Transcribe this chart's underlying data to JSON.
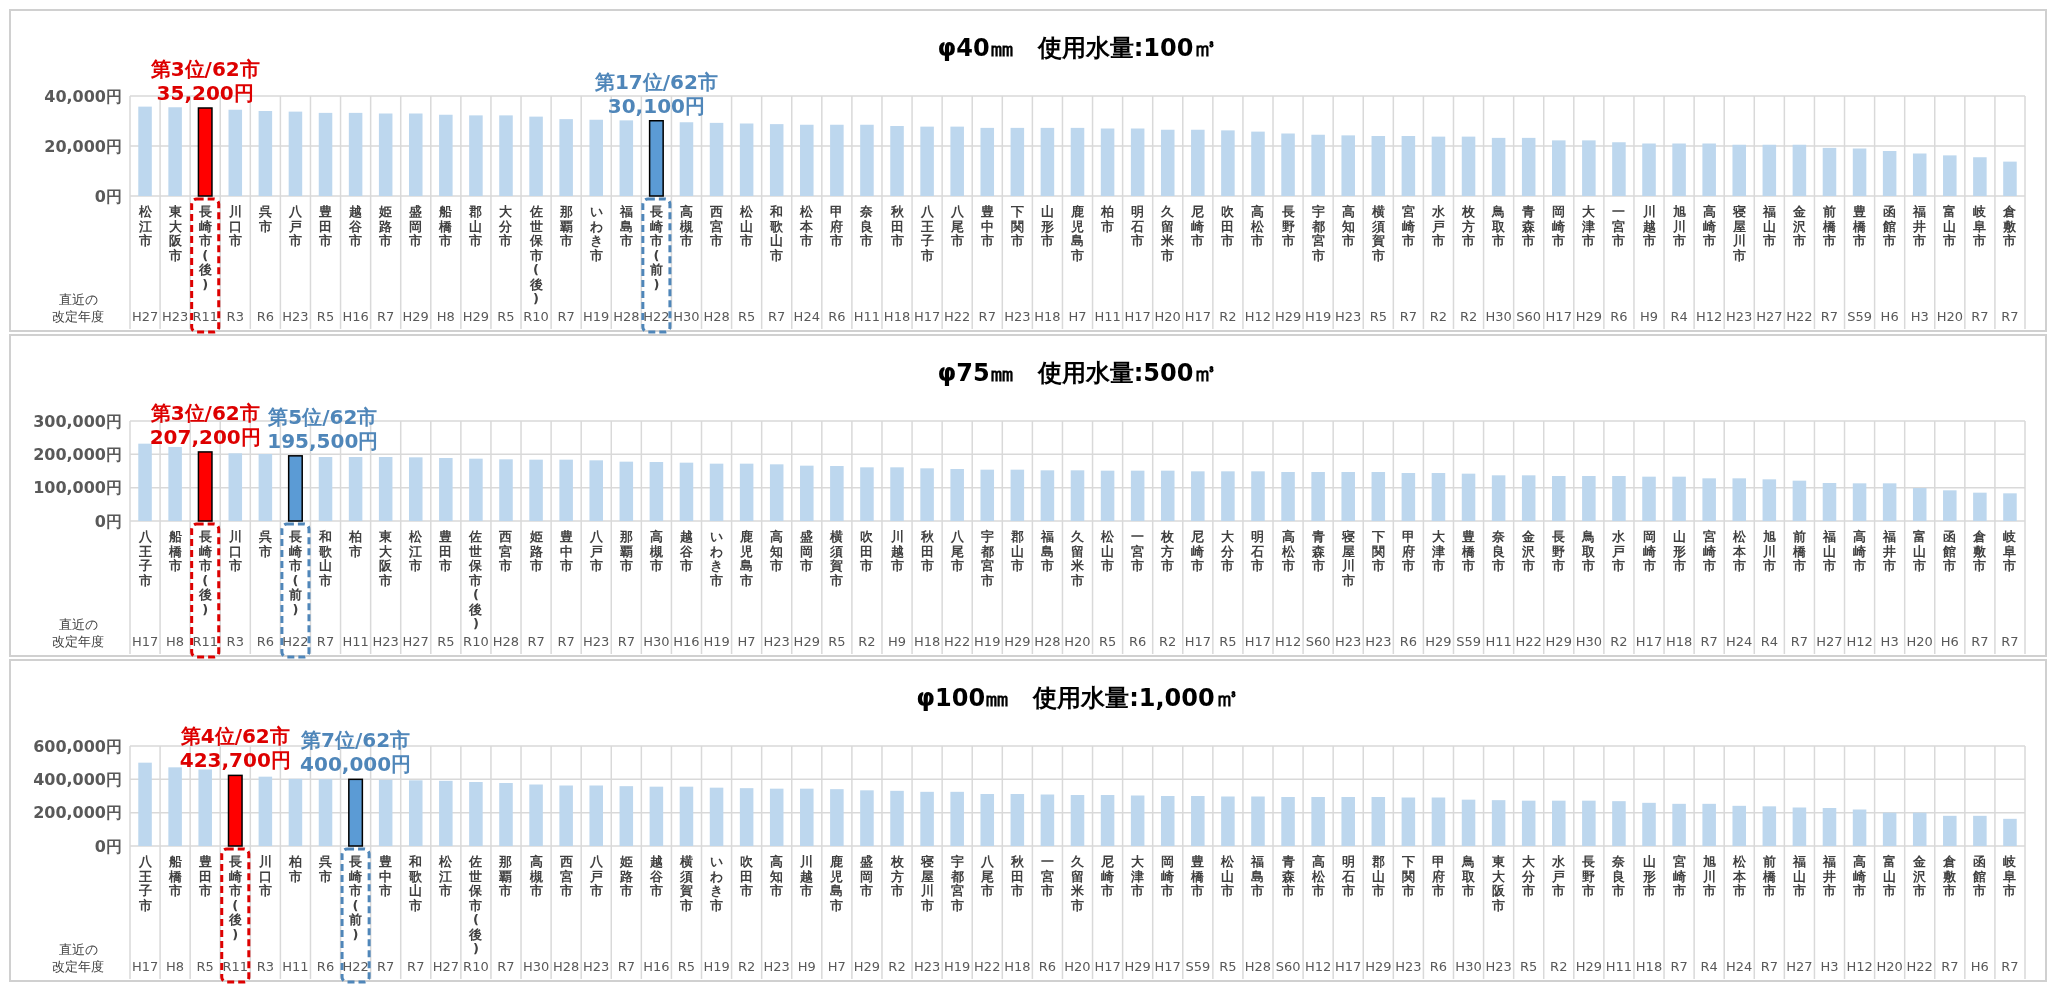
{
  "chart_data": [
    {
      "type": "bar",
      "title": "φ40㎜　使用水量:100㎥",
      "grid": true,
      "categories": [
        "松江市",
        "東大阪市",
        "長崎市(後)",
        "川口市",
        "呉市",
        "八戸市",
        "豊田市",
        "越谷市",
        "姫路市",
        "盛岡市",
        "船橋市",
        "郡山市",
        "大分市",
        "佐世保市(後)",
        "那覇市",
        "いわき市",
        "福島市",
        "長崎市(前)",
        "高槻市",
        "西宮市",
        "松山市",
        "和歌山市",
        "松本市",
        "甲府市",
        "奈良市",
        "秋田市",
        "八王子市",
        "八尾市",
        "豊中市",
        "下関市",
        "山形市",
        "鹿児島市",
        "柏市",
        "明石市",
        "久留米市",
        "尼崎市",
        "吹田市",
        "高松市",
        "長野市",
        "宇都宮市",
        "高知市",
        "横須賀市",
        "宮崎市",
        "水戸市",
        "枚方市",
        "鳥取市",
        "青森市",
        "岡崎市",
        "大津市",
        "一宮市",
        "川越市",
        "旭川市",
        "高崎市",
        "寝屋川市",
        "福山市",
        "金沢市",
        "前橋市",
        "豊橋市",
        "函館市",
        "福井市",
        "富山市",
        "岐阜市",
        "倉敷市"
      ],
      "values": [
        35750,
        35500,
        35200,
        34500,
        34000,
        33750,
        33250,
        33250,
        33000,
        33000,
        32500,
        32250,
        32250,
        31750,
        30750,
        30500,
        30250,
        30100,
        29500,
        29250,
        29000,
        28750,
        28500,
        28500,
        28500,
        28000,
        27750,
        27750,
        27250,
        27250,
        27250,
        27250,
        27000,
        27000,
        26500,
        26500,
        26250,
        25750,
        25000,
        24500,
        24250,
        24000,
        24000,
        23750,
        23750,
        23250,
        23250,
        22250,
        22250,
        21500,
        21000,
        21000,
        21000,
        20500,
        20500,
        20500,
        19250,
        19000,
        18000,
        17000,
        16250,
        15500,
        13750
      ],
      "colors": [
        "#bdd7ee",
        "#bdd7ee",
        "#ff0000",
        "#bdd7ee",
        "#bdd7ee",
        "#bdd7ee",
        "#bdd7ee",
        "#bdd7ee",
        "#bdd7ee",
        "#bdd7ee",
        "#bdd7ee",
        "#bdd7ee",
        "#bdd7ee",
        "#bdd7ee",
        "#bdd7ee",
        "#bdd7ee",
        "#bdd7ee",
        "#5b9bd5",
        "#bdd7ee",
        "#bdd7ee",
        "#bdd7ee",
        "#bdd7ee",
        "#bdd7ee",
        "#bdd7ee",
        "#bdd7ee",
        "#bdd7ee",
        "#bdd7ee",
        "#bdd7ee",
        "#bdd7ee",
        "#bdd7ee",
        "#bdd7ee",
        "#bdd7ee",
        "#bdd7ee",
        "#bdd7ee",
        "#bdd7ee",
        "#bdd7ee",
        "#bdd7ee",
        "#bdd7ee",
        "#bdd7ee",
        "#bdd7ee",
        "#bdd7ee",
        "#bdd7ee",
        "#bdd7ee",
        "#bdd7ee",
        "#bdd7ee",
        "#bdd7ee",
        "#bdd7ee",
        "#bdd7ee",
        "#bdd7ee",
        "#bdd7ee",
        "#bdd7ee",
        "#bdd7ee",
        "#bdd7ee",
        "#bdd7ee",
        "#bdd7ee",
        "#bdd7ee",
        "#bdd7ee",
        "#bdd7ee",
        "#bdd7ee",
        "#bdd7ee",
        "#bdd7ee",
        "#bdd7ee",
        "#bdd7ee"
      ],
      "ylim": [
        0,
        40000
      ],
      "yticks": [
        {
          "value": 0,
          "label": "0円"
        },
        {
          "value": 20000,
          "label": "20,000円"
        },
        {
          "value": 40000,
          "label": "40,000円"
        }
      ],
      "annotations": [
        "直近の改定年度",
        {
          "text": "第3位/62市\n35,200円",
          "x": "長崎市(後)",
          "y": 35200
        },
        {
          "text": "第17位/62市\n30,100円",
          "x": "長崎市(前)",
          "y": 30100
        },
        "H27",
        "H23",
        "R11",
        "R3",
        "R6",
        "H23",
        "R5",
        "H16",
        "R7",
        "H29",
        "H8",
        "H29",
        "R5",
        "R10",
        "R7",
        "H19",
        "H28",
        "H22",
        "H30",
        "H28",
        "R5",
        "R7",
        "H24",
        "R6",
        "H11",
        "H18",
        "H17",
        "H22",
        "R7",
        "H23",
        "H18",
        "H7",
        "H11",
        "H17",
        "H20",
        "H17",
        "R2",
        "H12",
        "H29",
        "H19",
        "H23",
        "R5",
        "R7",
        "R2",
        "R2",
        "H30",
        "S60",
        "H17",
        "H29",
        "R6",
        "H9",
        "R4",
        "H12",
        "H23",
        "H27",
        "H22",
        "R7",
        "S59",
        "H6",
        "H3",
        "H20",
        "R7",
        "R7"
      ]
    },
    {
      "type": "bar",
      "title": "φ75㎜　使用水量:500㎥",
      "grid": true,
      "categories": [
        "八王子市",
        "船橋市",
        "長崎市(後)",
        "川口市",
        "呉市",
        "長崎市(前)",
        "和歌山市",
        "柏市",
        "東大阪市",
        "松江市",
        "豊田市",
        "佐世保市(後)",
        "西宮市",
        "姫路市",
        "豊中市",
        "八戸市",
        "那覇市",
        "高槻市",
        "越谷市",
        "いわき市",
        "鹿児島市",
        "高知市",
        "盛岡市",
        "横須賀市",
        "吹田市",
        "川越市",
        "秋田市",
        "八尾市",
        "宇都宮市",
        "郡山市",
        "福島市",
        "久留米市",
        "松山市",
        "一宮市",
        "枚方市",
        "尼崎市",
        "大分市",
        "明石市",
        "高松市",
        "青森市",
        "寝屋川市",
        "下関市",
        "甲府市",
        "大津市",
        "豊橋市",
        "奈良市",
        "金沢市",
        "長野市",
        "鳥取市",
        "水戸市",
        "岡崎市",
        "山形市",
        "宮崎市",
        "松本市",
        "旭川市",
        "前橋市",
        "福山市",
        "高崎市",
        "福井市",
        "富山市",
        "函館市",
        "倉敷市",
        "岐阜市"
      ],
      "values": [
        232000,
        222000,
        207200,
        203000,
        201000,
        195500,
        192000,
        192000,
        192000,
        191000,
        189000,
        187000,
        185000,
        184000,
        184000,
        182000,
        178000,
        177000,
        175000,
        172000,
        172000,
        170000,
        166000,
        165000,
        161000,
        161000,
        158000,
        156000,
        154000,
        154000,
        152000,
        152000,
        151000,
        151000,
        151000,
        149000,
        149000,
        149000,
        147000,
        147000,
        147000,
        147000,
        144000,
        144000,
        142000,
        137000,
        137000,
        135000,
        135000,
        135000,
        133000,
        133000,
        128000,
        128000,
        125000,
        121000,
        114000,
        113000,
        113000,
        99000,
        92000,
        85000,
        83000
      ],
      "colors": [
        "#bdd7ee",
        "#bdd7ee",
        "#ff0000",
        "#bdd7ee",
        "#bdd7ee",
        "#5b9bd5",
        "#bdd7ee",
        "#bdd7ee",
        "#bdd7ee",
        "#bdd7ee",
        "#bdd7ee",
        "#bdd7ee",
        "#bdd7ee",
        "#bdd7ee",
        "#bdd7ee",
        "#bdd7ee",
        "#bdd7ee",
        "#bdd7ee",
        "#bdd7ee",
        "#bdd7ee",
        "#bdd7ee",
        "#bdd7ee",
        "#bdd7ee",
        "#bdd7ee",
        "#bdd7ee",
        "#bdd7ee",
        "#bdd7ee",
        "#bdd7ee",
        "#bdd7ee",
        "#bdd7ee",
        "#bdd7ee",
        "#bdd7ee",
        "#bdd7ee",
        "#bdd7ee",
        "#bdd7ee",
        "#bdd7ee",
        "#bdd7ee",
        "#bdd7ee",
        "#bdd7ee",
        "#bdd7ee",
        "#bdd7ee",
        "#bdd7ee",
        "#bdd7ee",
        "#bdd7ee",
        "#bdd7ee",
        "#bdd7ee",
        "#bdd7ee",
        "#bdd7ee",
        "#bdd7ee",
        "#bdd7ee",
        "#bdd7ee",
        "#bdd7ee",
        "#bdd7ee",
        "#bdd7ee",
        "#bdd7ee",
        "#bdd7ee",
        "#bdd7ee",
        "#bdd7ee",
        "#bdd7ee",
        "#bdd7ee",
        "#bdd7ee",
        "#bdd7ee",
        "#bdd7ee"
      ],
      "ylim": [
        0,
        300000
      ],
      "yticks": [
        {
          "value": 0,
          "label": "0円"
        },
        {
          "value": 100000,
          "label": "100,000円"
        },
        {
          "value": 200000,
          "label": "200,000円"
        },
        {
          "value": 300000,
          "label": "300,000円"
        }
      ],
      "annotations": [
        "直近の改定年度",
        {
          "text": "第3位/62市\n207,200円",
          "x": "長崎市(後)",
          "y": 207200
        },
        {
          "text": "第5位/62市\n195,500円",
          "x": "長崎市(前)",
          "y": 195500
        },
        "H17",
        "H8",
        "R11",
        "R3",
        "R6",
        "H22",
        "R7",
        "H11",
        "H23",
        "H27",
        "R5",
        "R10",
        "H28",
        "R7",
        "R7",
        "H23",
        "R7",
        "H30",
        "H16",
        "H19",
        "H7",
        "H23",
        "H29",
        "R5",
        "R2",
        "H9",
        "H18",
        "H22",
        "H19",
        "H29",
        "H28",
        "H20",
        "R5",
        "R6",
        "R2",
        "H17",
        "R5",
        "H17",
        "H12",
        "S60",
        "H23",
        "H23",
        "R6",
        "H29",
        "S59",
        "H11",
        "H22",
        "H29",
        "H30",
        "R2",
        "H17",
        "H18",
        "R7",
        "H24",
        "R4",
        "R7",
        "H27",
        "H12",
        "H3",
        "H20",
        "H6",
        "R7",
        "R7"
      ]
    },
    {
      "type": "bar",
      "title": "φ100㎜　使用水量:1,000㎥",
      "grid": true,
      "categories": [
        "八王子市",
        "船橋市",
        "豊田市",
        "長崎市(後)",
        "川口市",
        "柏市",
        "呉市",
        "長崎市(前)",
        "豊中市",
        "和歌山市",
        "松江市",
        "佐世保市(後)",
        "那覇市",
        "高槻市",
        "西宮市",
        "八戸市",
        "姫路市",
        "越谷市",
        "横須賀市",
        "いわき市",
        "吹田市",
        "高知市",
        "川越市",
        "鹿児島市",
        "盛岡市",
        "枚方市",
        "寝屋川市",
        "宇都宮市",
        "八尾市",
        "秋田市",
        "一宮市",
        "久留米市",
        "尼崎市",
        "大津市",
        "岡崎市",
        "豊橋市",
        "松山市",
        "福島市",
        "青森市",
        "高松市",
        "明石市",
        "郡山市",
        "下関市",
        "甲府市",
        "鳥取市",
        "東大阪市",
        "大分市",
        "水戸市",
        "長野市",
        "奈良市",
        "山形市",
        "宮崎市",
        "旭川市",
        "松本市",
        "前橋市",
        "福山市",
        "福井市",
        "高崎市",
        "富山市",
        "金沢市",
        "倉敷市",
        "函館市",
        "岐阜市"
      ],
      "values": [
        500000,
        472000,
        459000,
        423700,
        416000,
        403000,
        401000,
        400000,
        397000,
        394000,
        391000,
        384000,
        378000,
        369000,
        363000,
        363000,
        359000,
        356000,
        356000,
        350000,
        347000,
        344000,
        344000,
        341000,
        334000,
        331000,
        325000,
        325000,
        312000,
        312000,
        309000,
        306000,
        306000,
        303000,
        300000,
        300000,
        297000,
        297000,
        294000,
        294000,
        294000,
        294000,
        291000,
        291000,
        278000,
        275000,
        272000,
        272000,
        272000,
        269000,
        259000,
        253000,
        253000,
        241000,
        238000,
        231000,
        228000,
        219000,
        200000,
        200000,
        181000,
        181000,
        163000
      ],
      "colors": [
        "#bdd7ee",
        "#bdd7ee",
        "#bdd7ee",
        "#ff0000",
        "#bdd7ee",
        "#bdd7ee",
        "#bdd7ee",
        "#5b9bd5",
        "#bdd7ee",
        "#bdd7ee",
        "#bdd7ee",
        "#bdd7ee",
        "#bdd7ee",
        "#bdd7ee",
        "#bdd7ee",
        "#bdd7ee",
        "#bdd7ee",
        "#bdd7ee",
        "#bdd7ee",
        "#bdd7ee",
        "#bdd7ee",
        "#bdd7ee",
        "#bdd7ee",
        "#bdd7ee",
        "#bdd7ee",
        "#bdd7ee",
        "#bdd7ee",
        "#bdd7ee",
        "#bdd7ee",
        "#bdd7ee",
        "#bdd7ee",
        "#bdd7ee",
        "#bdd7ee",
        "#bdd7ee",
        "#bdd7ee",
        "#bdd7ee",
        "#bdd7ee",
        "#bdd7ee",
        "#bdd7ee",
        "#bdd7ee",
        "#bdd7ee",
        "#bdd7ee",
        "#bdd7ee",
        "#bdd7ee",
        "#bdd7ee",
        "#bdd7ee",
        "#bdd7ee",
        "#bdd7ee",
        "#bdd7ee",
        "#bdd7ee",
        "#bdd7ee",
        "#bdd7ee",
        "#bdd7ee",
        "#bdd7ee",
        "#bdd7ee",
        "#bdd7ee",
        "#bdd7ee",
        "#bdd7ee",
        "#bdd7ee",
        "#bdd7ee",
        "#bdd7ee",
        "#bdd7ee",
        "#bdd7ee"
      ],
      "ylim": [
        0,
        600000
      ],
      "yticks": [
        {
          "value": 0,
          "label": "0円"
        },
        {
          "value": 200000,
          "label": "200,000円"
        },
        {
          "value": 400000,
          "label": "400,000円"
        },
        {
          "value": 600000,
          "label": "600,000円"
        }
      ],
      "annotations": [
        "直近の改定年度",
        {
          "text": "第4位/62市\n423,700円",
          "x": "長崎市(後)",
          "y": 423700
        },
        {
          "text": "第7位/62市\n400,000円",
          "x": "長崎市(前)",
          "y": 400000
        },
        "H17",
        "H8",
        "R5",
        "R11",
        "R3",
        "H11",
        "R6",
        "H22",
        "R7",
        "R7",
        "H27",
        "R10",
        "R7",
        "H30",
        "H28",
        "H23",
        "R7",
        "H16",
        "R5",
        "H19",
        "R2",
        "H23",
        "H9",
        "H7",
        "H29",
        "R2",
        "H23",
        "H19",
        "H22",
        "H18",
        "R6",
        "H20",
        "H17",
        "H29",
        "H17",
        "S59",
        "R5",
        "H28",
        "S60",
        "H12",
        "H17",
        "H29",
        "H23",
        "R6",
        "H30",
        "H23",
        "R5",
        "R2",
        "H29",
        "H11",
        "H18",
        "R7",
        "R4",
        "H24",
        "R7",
        "H27",
        "H3",
        "H12",
        "H20",
        "H22",
        "R7",
        "H6",
        "R7"
      ]
    }
  ]
}
